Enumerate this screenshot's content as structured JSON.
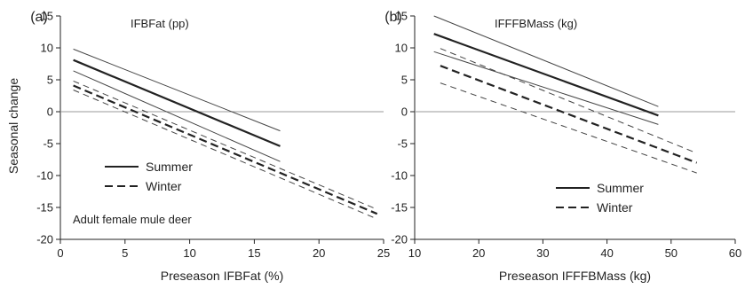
{
  "chart_data": [
    {
      "type": "line",
      "panel_label": "(a)",
      "title": "IFBFat (pp)",
      "xlabel": "Preseason IFBFat (%)",
      "ylabel": "Seasonal change",
      "xlim": [
        0,
        25
      ],
      "ylim": [
        -20,
        15
      ],
      "xticks": [
        "0",
        "5",
        "10",
        "15",
        "20",
        "25"
      ],
      "yticks": [
        "15",
        "10",
        "5",
        "0",
        "-5",
        "-10",
        "-15",
        "-20"
      ],
      "reference_line": 0,
      "annotation": "Adult female mule deer",
      "legend": {
        "placement": "center-left",
        "entries": [
          "Summer",
          "Winter"
        ]
      },
      "series": [
        {
          "name": "Summer",
          "style": "solid",
          "role": "fit",
          "x": [
            1,
            17
          ],
          "y": [
            8.1,
            -5.4
          ]
        },
        {
          "name": "Summer",
          "style": "solid",
          "role": "ci-upper",
          "x": [
            1,
            17
          ],
          "y": [
            9.8,
            -3.0
          ]
        },
        {
          "name": "Summer",
          "style": "solid",
          "role": "ci-lower",
          "x": [
            1,
            17
          ],
          "y": [
            6.4,
            -7.8
          ]
        },
        {
          "name": "Winter",
          "style": "dashed",
          "role": "fit",
          "x": [
            1,
            24.5
          ],
          "y": [
            4.1,
            -16.0
          ]
        },
        {
          "name": "Winter",
          "style": "dashed",
          "role": "ci-upper",
          "x": [
            1,
            24.5
          ],
          "y": [
            4.8,
            -15.3
          ]
        },
        {
          "name": "Winter",
          "style": "dashed",
          "role": "ci-lower",
          "x": [
            1,
            24.5
          ],
          "y": [
            3.4,
            -16.8
          ]
        }
      ]
    },
    {
      "type": "line",
      "panel_label": "(b)",
      "title": "IFFFBMass (kg)",
      "xlabel": "Preseason IFFFBMass (kg)",
      "xlim": [
        10,
        60
      ],
      "ylim": [
        -20,
        15
      ],
      "xticks": [
        "10",
        "20",
        "30",
        "40",
        "50",
        "60"
      ],
      "yticks": [
        "15",
        "10",
        "5",
        "0",
        "-5",
        "-10",
        "-15",
        "-20"
      ],
      "reference_line": 0,
      "legend": {
        "placement": "bottom-right",
        "entries": [
          "Summer",
          "Winter"
        ]
      },
      "series": [
        {
          "name": "Summer",
          "style": "solid",
          "role": "fit",
          "x": [
            13,
            48
          ],
          "y": [
            12.2,
            -0.6
          ]
        },
        {
          "name": "Summer",
          "style": "solid",
          "role": "ci-upper",
          "x": [
            13,
            48
          ],
          "y": [
            15.0,
            0.8
          ]
        },
        {
          "name": "Summer",
          "style": "solid",
          "role": "ci-lower",
          "x": [
            13,
            48
          ],
          "y": [
            9.4,
            -2.0
          ]
        },
        {
          "name": "Winter",
          "style": "dashed",
          "role": "fit",
          "x": [
            14,
            54
          ],
          "y": [
            7.2,
            -8.0
          ]
        },
        {
          "name": "Winter",
          "style": "dashed",
          "role": "ci-upper",
          "x": [
            14,
            54
          ],
          "y": [
            9.9,
            -6.5
          ]
        },
        {
          "name": "Winter",
          "style": "dashed",
          "role": "ci-lower",
          "x": [
            14,
            54
          ],
          "y": [
            4.5,
            -9.6
          ]
        }
      ]
    }
  ],
  "colors": {
    "line": "#222222",
    "ci": "#444444",
    "zero_line": "#9a9a9a",
    "axis": "#222222"
  }
}
